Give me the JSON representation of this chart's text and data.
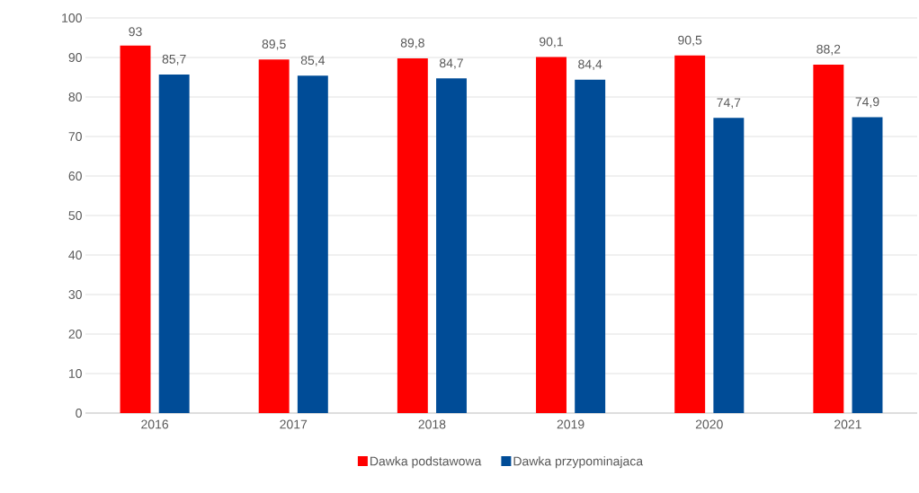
{
  "chart_data": {
    "type": "bar",
    "categories": [
      "2016",
      "2017",
      "2018",
      "2019",
      "2020",
      "2021"
    ],
    "series": [
      {
        "name": "Dawka podstawowa",
        "color": "#ff0000",
        "values": [
          93,
          89.5,
          89.8,
          90.1,
          90.5,
          88.2
        ],
        "value_labels": [
          "93",
          "89,5",
          "89,8",
          "90,1",
          "90,5",
          "88,2"
        ]
      },
      {
        "name": "Dawka przypominajaca",
        "color": "#004c97",
        "values": [
          85.7,
          85.4,
          84.7,
          84.4,
          74.7,
          74.9
        ],
        "value_labels": [
          "85,7",
          "85,4",
          "84,7",
          "84,4",
          "74,7",
          "74,9"
        ]
      }
    ],
    "ylim": [
      0,
      100
    ],
    "yticks": [
      0,
      10,
      20,
      30,
      40,
      50,
      60,
      70,
      80,
      90,
      100
    ],
    "grid": "y",
    "legend": "bottom"
  }
}
